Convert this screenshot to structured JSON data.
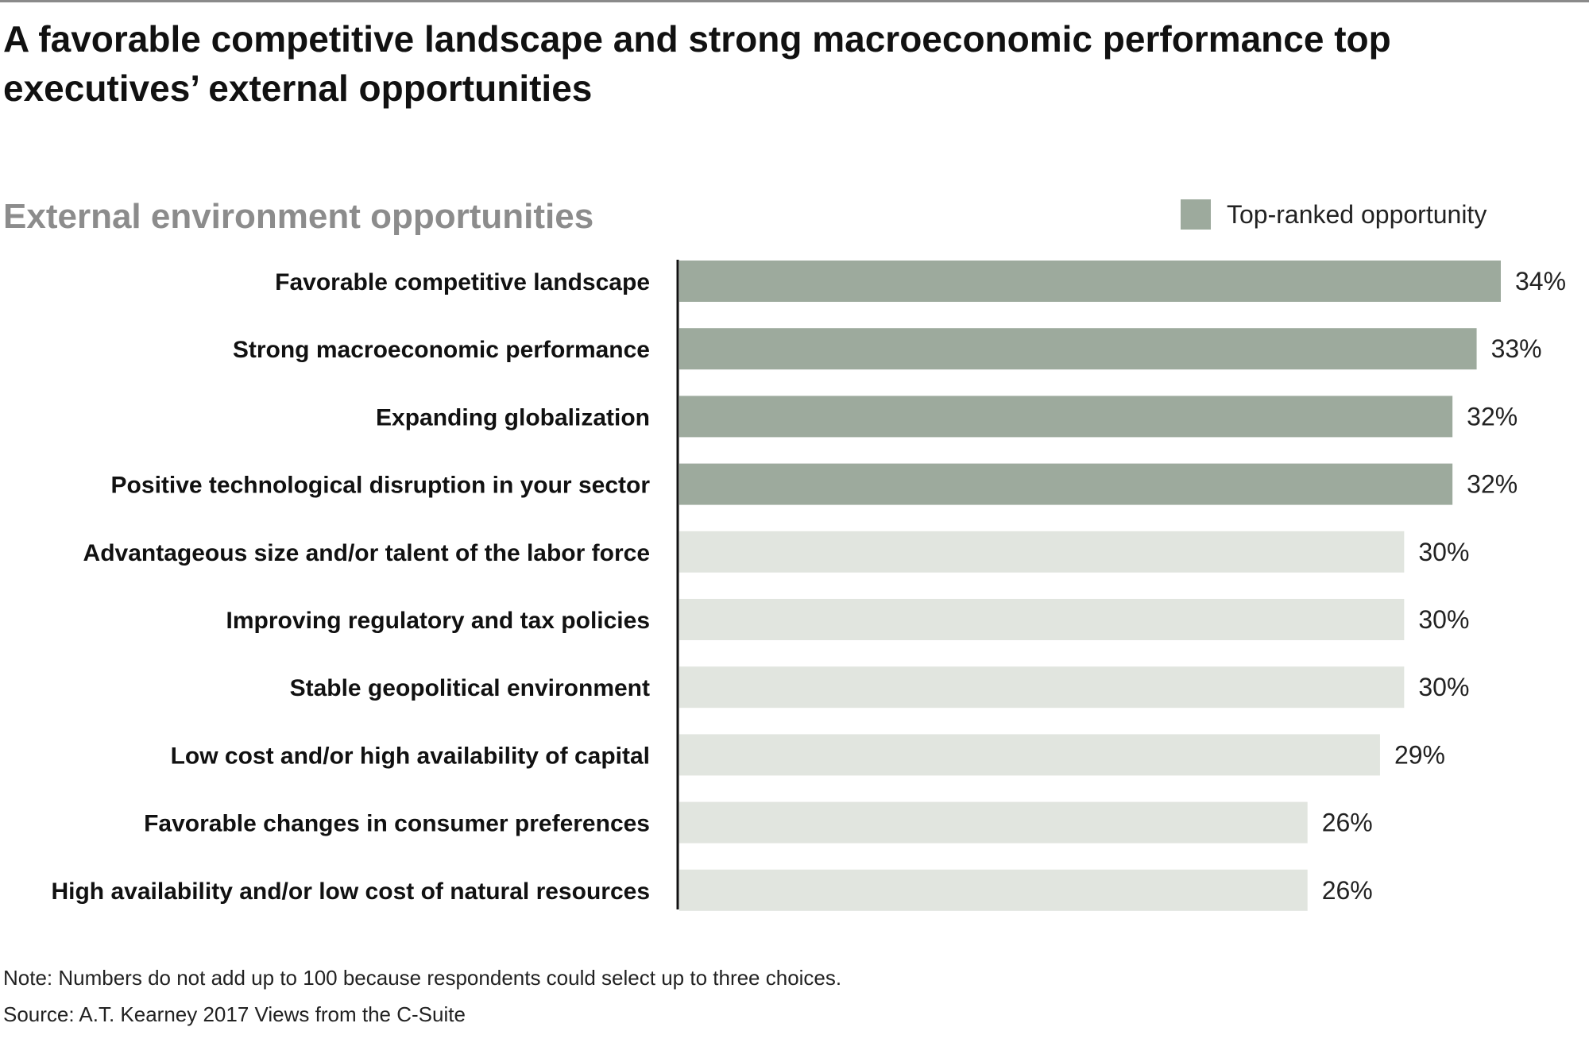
{
  "header": {
    "title": "A favorable competitive landscape and strong macroeconomic performance top executives’ external opportunities"
  },
  "colors": {
    "highlight": "#9daa9d",
    "other": "#e1e5df",
    "axis": "#111111"
  },
  "chart_data": {
    "type": "bar",
    "orientation": "horizontal",
    "title": "External environment opportunities",
    "xlabel": "",
    "ylabel": "",
    "categories": [
      "Favorable competitive landscape",
      "Strong macroeconomic performance",
      "Expanding globalization",
      "Positive technological disruption in your sector",
      "Advantageous size and/or talent of the labor force",
      "Improving regulatory and tax policies",
      "Stable geopolitical environment",
      "Low cost and/or high availability of capital",
      "Favorable changes in consumer preferences",
      "High availability and/or low cost of natural resources"
    ],
    "values": [
      34,
      33,
      32,
      32,
      30,
      30,
      30,
      29,
      26,
      26
    ],
    "value_labels": [
      "34%",
      "33%",
      "32%",
      "32%",
      "30%",
      "30%",
      "30%",
      "29%",
      "26%",
      "26%"
    ],
    "highlighted": [
      true,
      true,
      true,
      true,
      false,
      false,
      false,
      false,
      false,
      false
    ],
    "xlim": [
      0,
      34
    ],
    "grid": false,
    "legend": {
      "position": "top-right",
      "entries": [
        {
          "label": "Top-ranked opportunity",
          "color": "#9daa9d"
        }
      ]
    }
  },
  "footer": {
    "note": "Note: Numbers do not add up to 100 because respondents could select up to three choices.",
    "source": "Source: A.T. Kearney 2017 Views from the C-Suite"
  }
}
